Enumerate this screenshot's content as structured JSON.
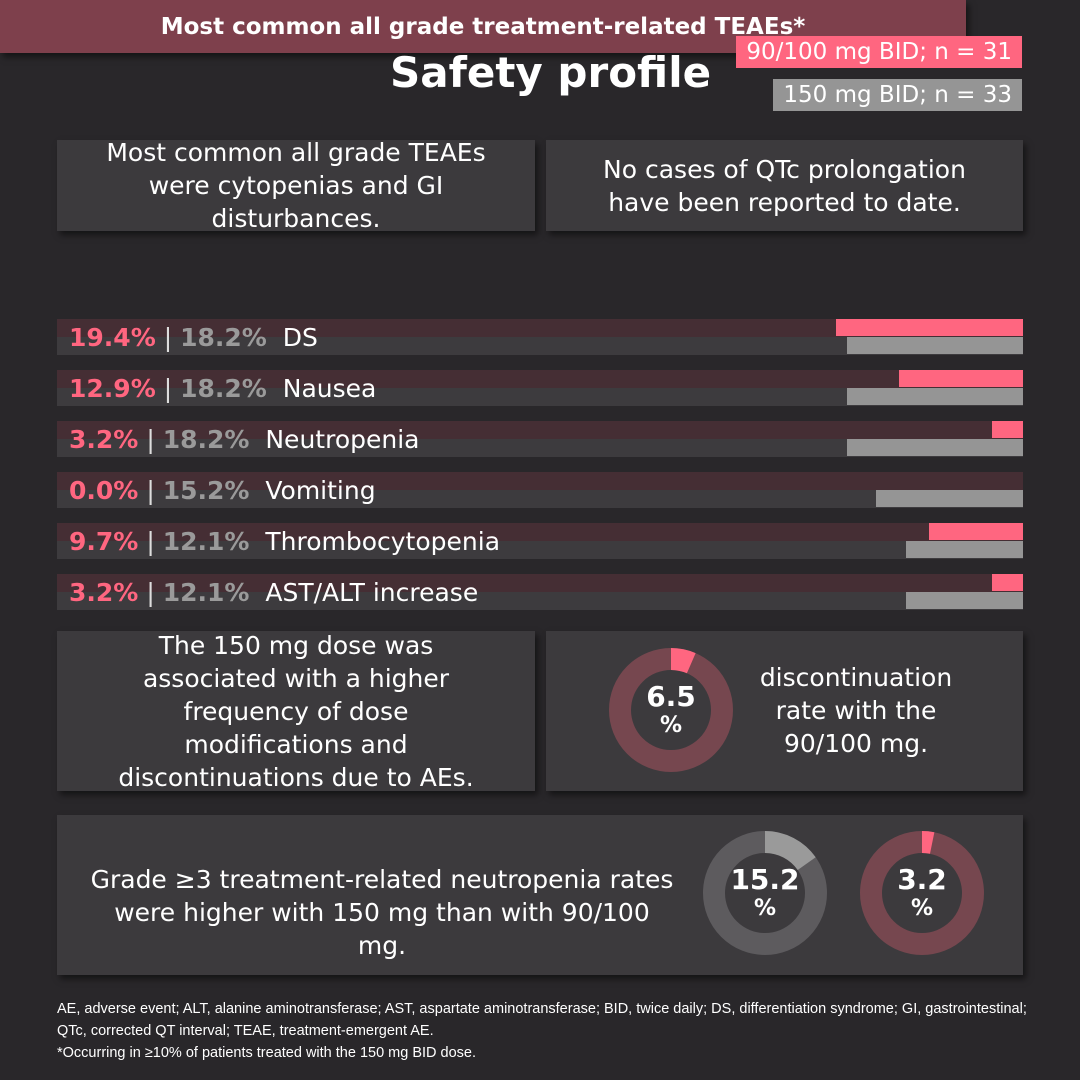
{
  "title": "Safety profile",
  "legend": [
    {
      "label": "90/100 mg BID; n = 31",
      "color": "#ff6680"
    },
    {
      "label": "150 mg BID; n = 33",
      "color": "#959595"
    }
  ],
  "box1": "Most common all grade TEAEs were cytopenias and GI disturbances.",
  "box2": "No cases of QTc prolongation have been reported to date.",
  "chart_data": {
    "type": "bar",
    "title": "Most common all grade treatment-related TEAEs*",
    "categories": [
      "DS",
      "Nausea",
      "Neutropenia",
      "Vomiting",
      "Thrombocytopenia",
      "AST/ALT increase"
    ],
    "series": [
      {
        "name": "90/100 mg BID; n = 31",
        "values": [
          19.4,
          12.9,
          3.2,
          0.0,
          9.7,
          3.2
        ]
      },
      {
        "name": "150 mg BID; n = 33",
        "values": [
          18.2,
          18.2,
          18.2,
          15.2,
          12.1,
          12.1
        ]
      }
    ],
    "unit": "%"
  },
  "box3": "The 150 mg dose was associated with a higher frequency of dose modifications and discontinuations due to AEs.",
  "disc": {
    "value": 6.5,
    "label": "6.5",
    "pct": "%",
    "text": "discontinuation rate with the 90/100 mg."
  },
  "box4": "Grade ≥3 treatment-related neutropenia rates were higher with 150 mg than with 90/100 mg.",
  "neut": [
    {
      "value": 15.2,
      "label": "15.2",
      "pct": "%"
    },
    {
      "value": 3.2,
      "label": "3.2",
      "pct": "%"
    }
  ],
  "footnote1": "AE, adverse event; ALT, alanine aminotransferase; AST, aspartate aminotransferase; BID, twice daily; DS, differentiation syndrome; GI, gastrointestinal; QTc, corrected QT interval; TEAE, treatment-emergent AE.",
  "footnote2": "*Occurring in ≥10% of patients treated with the 150 mg BID dose."
}
